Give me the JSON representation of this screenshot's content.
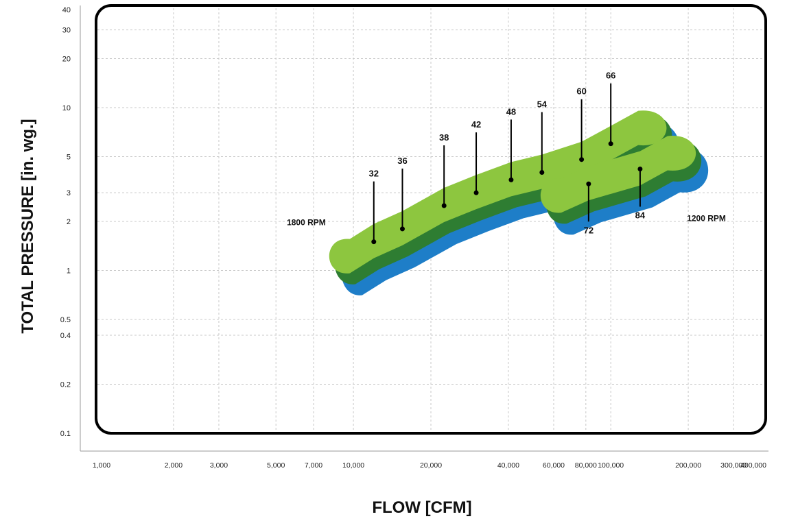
{
  "chart_data": {
    "type": "scatter",
    "xlabel": "FLOW [CFM]",
    "ylabel": "TOTAL PRESSURE [in. wg.]",
    "x_scale": "log",
    "y_scale": "log",
    "xlim": [
      1000,
      400000
    ],
    "ylim": [
      0.1,
      40
    ],
    "x_ticks": [
      1000,
      2000,
      3000,
      5000,
      7000,
      10000,
      20000,
      40000,
      60000,
      80000,
      100000,
      200000,
      300000,
      400000
    ],
    "x_tick_labels": [
      "1,000",
      "2,000",
      "3,000",
      "5,000",
      "7,000",
      "10,000",
      "20,000",
      "40,000",
      "60,000",
      "80,000",
      "100,000",
      "200,000",
      "300,000",
      "400,000"
    ],
    "y_ticks": [
      0.1,
      0.2,
      0.4,
      0.5,
      1,
      2,
      3,
      5,
      10,
      20,
      30,
      40
    ],
    "y_tick_labels": [
      "0.1",
      "0.2",
      "0.4",
      "0.5",
      "1",
      "2",
      "3",
      "5",
      "10",
      "20",
      "30",
      "40"
    ],
    "grid": true,
    "rpm_labels": [
      "1800 RPM",
      "1200 RPM"
    ],
    "regions": [
      {
        "name": "1800 RPM",
        "sizes": [
          {
            "label": "32",
            "flow": 12000,
            "pressure": 1.5
          },
          {
            "label": "36",
            "flow": 15500,
            "pressure": 1.8
          },
          {
            "label": "38",
            "flow": 22500,
            "pressure": 2.5
          },
          {
            "label": "42",
            "flow": 30000,
            "pressure": 3.0
          },
          {
            "label": "48",
            "flow": 41000,
            "pressure": 3.6
          },
          {
            "label": "54",
            "flow": 54000,
            "pressure": 4.0
          },
          {
            "label": "60",
            "flow": 77000,
            "pressure": 4.8
          },
          {
            "label": "66",
            "flow": 100000,
            "pressure": 6.0
          }
        ]
      },
      {
        "name": "1200 RPM",
        "sizes": [
          {
            "label": "72",
            "flow": 82000,
            "pressure": 3.4
          },
          {
            "label": "84",
            "flow": 130000,
            "pressure": 4.2
          }
        ]
      }
    ],
    "colors": {
      "outer": "#1e7ec8",
      "middle": "#2e7d32",
      "inner": "#8dc63f"
    }
  }
}
